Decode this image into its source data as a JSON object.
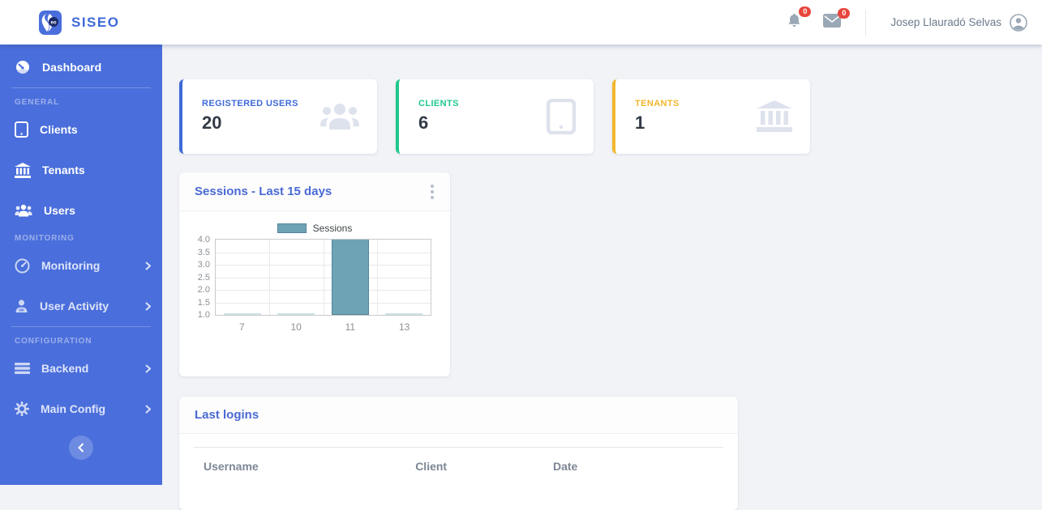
{
  "brand": {
    "name": "SISEO",
    "logo_text": "eo"
  },
  "header": {
    "notifications": {
      "count": "0"
    },
    "messages": {
      "count": "0"
    },
    "user": {
      "name": "Josep Llauradó Selvas"
    }
  },
  "sidebar": {
    "dashboard": {
      "label": "Dashboard"
    },
    "sections": [
      {
        "label": "GENERAL",
        "items": [
          {
            "label": "Clients"
          },
          {
            "label": "Tenants"
          },
          {
            "label": "Users"
          }
        ]
      },
      {
        "label": "MONITORING",
        "items": [
          {
            "label": "Monitoring",
            "has_submenu": true
          },
          {
            "label": "User Activity",
            "has_submenu": true
          }
        ]
      },
      {
        "label": "CONFIGURATION",
        "items": [
          {
            "label": "Backend",
            "has_submenu": true
          },
          {
            "label": "Main Config",
            "has_submenu": true
          }
        ]
      }
    ]
  },
  "stats": [
    {
      "label": "REGISTERED USERS",
      "value": "20",
      "accent": "#3e6ad8",
      "icon": "users-group-icon"
    },
    {
      "label": "CLIENTS",
      "value": "6",
      "accent": "#1fc88c",
      "icon": "tablet-icon"
    },
    {
      "label": "TENANTS",
      "value": "1",
      "accent": "#f3b72f",
      "icon": "bank-icon"
    }
  ],
  "sessions_card": {
    "title": "Sessions - Last 15 days"
  },
  "chart_data": {
    "type": "bar",
    "title": "Sessions - Last 15 days",
    "legend": "Sessions",
    "legend_position": "top",
    "categories": [
      "7",
      "10",
      "11",
      "13"
    ],
    "values": [
      1,
      1,
      4,
      1
    ],
    "ylim": [
      1.0,
      4.0
    ],
    "ytick_step": 0.5,
    "yticks": [
      1.0,
      1.5,
      2.0,
      2.5,
      3.0,
      3.5,
      4.0
    ],
    "bar_color": "#6da3b5",
    "grid": true
  },
  "last_logins": {
    "title": "Last logins",
    "columns": [
      "Username",
      "Client",
      "Date"
    ],
    "rows": []
  },
  "colors": {
    "sidebar": "#4a6edb",
    "brand": "#3e6ad8",
    "badge": "#e8463d",
    "card_title": "#4a6ad4",
    "background": "#f1f3f7",
    "bar_fill": "#6da3b5"
  }
}
